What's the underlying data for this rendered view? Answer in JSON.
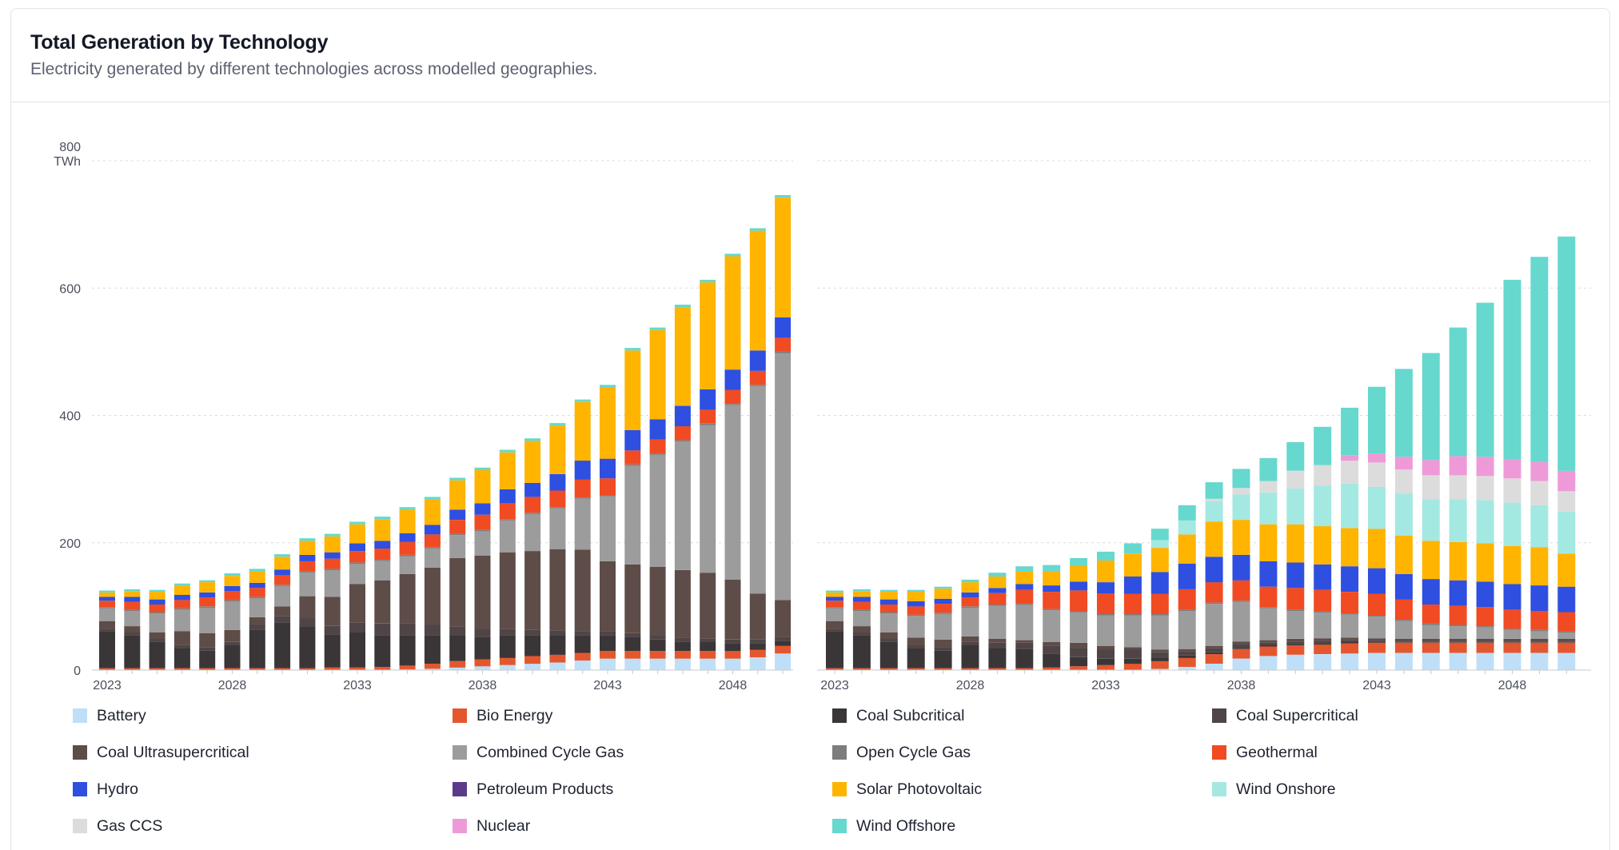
{
  "card": {
    "title": "Total Generation by Technology",
    "subtitle": "Electricity generated by different technologies across modelled geographies."
  },
  "colors": {
    "Battery": "#bfdff8",
    "Bio Energy": "#e4572e",
    "Coal Subcritical": "#3a3638",
    "Coal Supercritical": "#4f4547",
    "Coal Ultrasupercritical": "#5e4c48",
    "Combined Cycle Gas": "#9c9c9c",
    "Open Cycle Gas": "#7d7d7d",
    "Geothermal": "#f04b23",
    "Hydro": "#2f4fe0",
    "Petroleum Products": "#5b3a8c",
    "Solar Photovoltaic": "#ffb400",
    "Wind Onshore": "#a4e8e2",
    "Gas CCS": "#dcdcdc",
    "Nuclear": "#ee9ad8",
    "Wind Offshore": "#66d8ce"
  },
  "chart_data": [
    {
      "type": "bar",
      "stacked": true,
      "ylabel": "TWh",
      "ylim": [
        0,
        800
      ],
      "yticks": [
        0,
        200,
        400,
        600,
        800
      ],
      "x": [
        2023,
        2024,
        2025,
        2026,
        2027,
        2028,
        2029,
        2030,
        2031,
        2032,
        2033,
        2034,
        2035,
        2036,
        2037,
        2038,
        2039,
        2040,
        2041,
        2042,
        2043,
        2044,
        2045,
        2046,
        2047,
        2048,
        2049,
        2050
      ],
      "xtick_labels": [
        "2023",
        "2028",
        "2033",
        "2038",
        "2043",
        "2048"
      ],
      "grid": true,
      "series": [
        {
          "name": "Battery",
          "values": [
            0,
            0,
            0,
            0,
            0,
            0,
            0,
            0,
            0,
            0,
            0,
            0,
            1,
            2,
            4,
            6,
            8,
            10,
            12,
            15,
            18,
            18,
            18,
            18,
            18,
            18,
            20,
            26
          ]
        },
        {
          "name": "Bio Energy",
          "values": [
            3,
            3,
            3,
            3,
            3,
            3,
            3,
            3,
            3,
            4,
            4,
            5,
            6,
            8,
            10,
            11,
            11,
            12,
            12,
            12,
            12,
            12,
            12,
            12,
            12,
            12,
            12,
            12
          ]
        },
        {
          "name": "Coal Subcritical",
          "values": [
            58,
            52,
            42,
            32,
            28,
            36,
            60,
            72,
            66,
            52,
            55,
            50,
            48,
            45,
            40,
            35,
            36,
            33,
            30,
            28,
            25,
            22,
            18,
            15,
            14,
            12,
            10,
            8
          ]
        },
        {
          "name": "Coal Supercritical",
          "values": [
            4,
            4,
            4,
            4,
            5,
            6,
            8,
            10,
            12,
            14,
            16,
            18,
            18,
            16,
            14,
            12,
            10,
            8,
            8,
            6,
            6,
            6,
            6,
            6,
            6,
            6,
            6,
            6
          ]
        },
        {
          "name": "Coal Ultrasupercritical",
          "values": [
            12,
            10,
            10,
            22,
            22,
            18,
            12,
            15,
            35,
            45,
            60,
            68,
            78,
            90,
            108,
            116,
            120,
            124,
            128,
            128,
            110,
            108,
            108,
            106,
            103,
            94,
            72,
            58
          ]
        },
        {
          "name": "Combined Cycle Gas",
          "values": [
            20,
            24,
            30,
            34,
            40,
            45,
            30,
            32,
            37,
            42,
            32,
            30,
            28,
            30,
            36,
            38,
            50,
            58,
            64,
            80,
            102,
            155,
            176,
            202,
            232,
            274,
            326,
            388
          ]
        },
        {
          "name": "Open Cycle Gas",
          "values": [
            2,
            2,
            2,
            2,
            2,
            2,
            2,
            2,
            2,
            2,
            2,
            2,
            2,
            2,
            2,
            2,
            2,
            2,
            2,
            2,
            2,
            2,
            2,
            2,
            2,
            2,
            2,
            2
          ]
        },
        {
          "name": "Geothermal",
          "values": [
            10,
            12,
            12,
            13,
            14,
            14,
            14,
            15,
            16,
            16,
            18,
            18,
            20,
            20,
            22,
            24,
            25,
            25,
            26,
            28,
            26,
            22,
            22,
            22,
            22,
            22,
            22,
            22
          ]
        },
        {
          "name": "Hydro",
          "values": [
            6,
            8,
            8,
            8,
            8,
            8,
            8,
            9,
            10,
            10,
            12,
            12,
            14,
            15,
            16,
            18,
            22,
            22,
            26,
            30,
            31,
            32,
            32,
            32,
            32,
            32,
            32,
            32
          ]
        },
        {
          "name": "Petroleum Products",
          "values": [
            0,
            0,
            0,
            0,
            0,
            0,
            0,
            0,
            0,
            0,
            0,
            0,
            0,
            0,
            0,
            0,
            0,
            0,
            0,
            0,
            0,
            0,
            0,
            0,
            0,
            0,
            0,
            0
          ]
        },
        {
          "name": "Solar Photovoltaic",
          "values": [
            7,
            9,
            12,
            15,
            16,
            16,
            18,
            20,
            22,
            25,
            30,
            34,
            37,
            40,
            46,
            52,
            58,
            66,
            76,
            92,
            112,
            125,
            140,
            155,
            168,
            178,
            188,
            188
          ]
        },
        {
          "name": "Wind Onshore",
          "values": [
            0,
            0,
            0,
            0,
            0,
            0,
            0,
            0,
            0,
            0,
            0,
            0,
            0,
            0,
            0,
            0,
            0,
            0,
            0,
            0,
            0,
            0,
            0,
            0,
            0,
            0,
            0,
            0
          ]
        },
        {
          "name": "Gas CCS",
          "values": [
            0,
            0,
            0,
            0,
            0,
            0,
            0,
            0,
            0,
            0,
            0,
            0,
            0,
            0,
            0,
            0,
            0,
            0,
            0,
            0,
            0,
            0,
            0,
            0,
            0,
            0,
            0,
            0
          ]
        },
        {
          "name": "Nuclear",
          "values": [
            0,
            0,
            0,
            0,
            0,
            0,
            0,
            0,
            0,
            0,
            0,
            0,
            0,
            0,
            0,
            0,
            0,
            0,
            0,
            0,
            0,
            0,
            0,
            0,
            0,
            0,
            0,
            0
          ]
        },
        {
          "name": "Wind Offshore",
          "values": [
            3,
            3,
            3,
            3,
            3,
            4,
            4,
            4,
            4,
            4,
            4,
            4,
            4,
            4,
            4,
            4,
            4,
            4,
            4,
            4,
            4,
            4,
            4,
            4,
            4,
            4,
            4,
            4
          ]
        }
      ]
    },
    {
      "type": "bar",
      "stacked": true,
      "ylim": [
        0,
        800
      ],
      "x": [
        2023,
        2024,
        2025,
        2026,
        2027,
        2028,
        2029,
        2030,
        2031,
        2032,
        2033,
        2034,
        2035,
        2036,
        2037,
        2038,
        2039,
        2040,
        2041,
        2042,
        2043,
        2044,
        2045,
        2046,
        2047,
        2048,
        2049,
        2050
      ],
      "xtick_labels": [
        "2023",
        "2028",
        "2033",
        "2038",
        "2043",
        "2048"
      ],
      "grid": true,
      "series": [
        {
          "name": "Battery",
          "values": [
            0,
            0,
            0,
            0,
            0,
            0,
            0,
            0,
            0,
            0,
            0,
            0,
            2,
            5,
            10,
            18,
            22,
            24,
            25,
            26,
            27,
            27,
            27,
            27,
            27,
            27,
            27,
            27
          ]
        },
        {
          "name": "Bio Energy",
          "values": [
            3,
            3,
            3,
            3,
            3,
            3,
            3,
            3,
            4,
            6,
            8,
            10,
            12,
            14,
            15,
            15,
            15,
            15,
            15,
            16,
            16,
            16,
            16,
            16,
            16,
            16,
            16,
            16
          ]
        },
        {
          "name": "Coal Subcritical",
          "values": [
            58,
            52,
            42,
            32,
            28,
            36,
            32,
            30,
            22,
            15,
            10,
            8,
            6,
            4,
            3,
            2,
            2,
            2,
            2,
            2,
            1,
            0,
            0,
            0,
            0,
            0,
            0,
            0
          ]
        },
        {
          "name": "Coal Supercritical",
          "values": [
            4,
            4,
            4,
            4,
            5,
            6,
            8,
            10,
            12,
            14,
            14,
            14,
            8,
            6,
            6,
            6,
            4,
            4,
            4,
            3,
            2,
            2,
            2,
            2,
            2,
            2,
            2,
            2
          ]
        },
        {
          "name": "Coal Ultrasupercritical",
          "values": [
            12,
            10,
            10,
            12,
            12,
            8,
            6,
            4,
            6,
            8,
            6,
            4,
            4,
            4,
            4,
            4,
            4,
            4,
            4,
            4,
            4,
            4,
            4,
            4,
            4,
            4,
            4,
            4
          ]
        },
        {
          "name": "Combined Cycle Gas",
          "values": [
            20,
            24,
            30,
            34,
            40,
            45,
            52,
            55,
            50,
            48,
            48,
            50,
            54,
            60,
            66,
            62,
            50,
            44,
            40,
            36,
            34,
            28,
            22,
            20,
            18,
            14,
            12,
            10
          ]
        },
        {
          "name": "Open Cycle Gas",
          "values": [
            2,
            2,
            2,
            2,
            2,
            2,
            2,
            2,
            2,
            2,
            2,
            2,
            2,
            2,
            2,
            2,
            2,
            2,
            2,
            2,
            2,
            2,
            2,
            2,
            2,
            2,
            2,
            2
          ]
        },
        {
          "name": "Geothermal",
          "values": [
            10,
            12,
            12,
            13,
            14,
            14,
            18,
            22,
            27,
            32,
            32,
            32,
            32,
            32,
            32,
            32,
            32,
            34,
            34,
            34,
            34,
            32,
            30,
            30,
            30,
            30,
            30,
            30
          ]
        },
        {
          "name": "Hydro",
          "values": [
            6,
            8,
            8,
            8,
            8,
            8,
            8,
            9,
            10,
            14,
            18,
            27,
            34,
            40,
            40,
            40,
            40,
            40,
            40,
            40,
            40,
            40,
            40,
            40,
            40,
            40,
            40,
            40
          ]
        },
        {
          "name": "Petroleum Products",
          "values": [
            0,
            0,
            0,
            0,
            0,
            0,
            0,
            0,
            0,
            0,
            0,
            0,
            0,
            0,
            0,
            0,
            0,
            0,
            0,
            0,
            0,
            0,
            0,
            0,
            0,
            0,
            0,
            0
          ]
        },
        {
          "name": "Solar Photovoltaic",
          "values": [
            7,
            9,
            12,
            15,
            16,
            16,
            18,
            20,
            22,
            25,
            34,
            36,
            38,
            46,
            55,
            55,
            58,
            60,
            60,
            60,
            62,
            60,
            60,
            60,
            60,
            60,
            60,
            52
          ]
        },
        {
          "name": "Wind Onshore",
          "values": [
            0,
            0,
            0,
            0,
            0,
            0,
            0,
            0,
            0,
            0,
            0,
            0,
            12,
            22,
            32,
            40,
            50,
            56,
            64,
            70,
            66,
            66,
            65,
            67,
            68,
            68,
            66,
            66
          ]
        },
        {
          "name": "Gas CCS",
          "values": [
            0,
            0,
            0,
            0,
            0,
            0,
            0,
            0,
            0,
            0,
            0,
            0,
            0,
            0,
            4,
            10,
            18,
            28,
            32,
            36,
            38,
            38,
            38,
            38,
            38,
            38,
            38,
            32
          ]
        },
        {
          "name": "Nuclear",
          "values": [
            0,
            0,
            0,
            0,
            0,
            0,
            0,
            0,
            0,
            0,
            0,
            0,
            0,
            0,
            0,
            0,
            0,
            0,
            0,
            8,
            14,
            20,
            24,
            30,
            30,
            30,
            30,
            32
          ]
        },
        {
          "name": "Wind Offshore",
          "values": [
            3,
            3,
            3,
            3,
            3,
            4,
            6,
            8,
            10,
            12,
            14,
            16,
            18,
            24,
            26,
            30,
            36,
            45,
            60,
            75,
            105,
            138,
            168,
            202,
            242,
            282,
            322,
            368
          ]
        }
      ]
    }
  ],
  "legend": [
    "Battery",
    "Bio Energy",
    "Coal Subcritical",
    "Coal Supercritical",
    "Coal Ultrasupercritical",
    "Combined Cycle Gas",
    "Open Cycle Gas",
    "Geothermal",
    "Hydro",
    "Petroleum Products",
    "Solar Photovoltaic",
    "Wind Onshore",
    "Gas CCS",
    "Nuclear",
    "Wind Offshore"
  ]
}
